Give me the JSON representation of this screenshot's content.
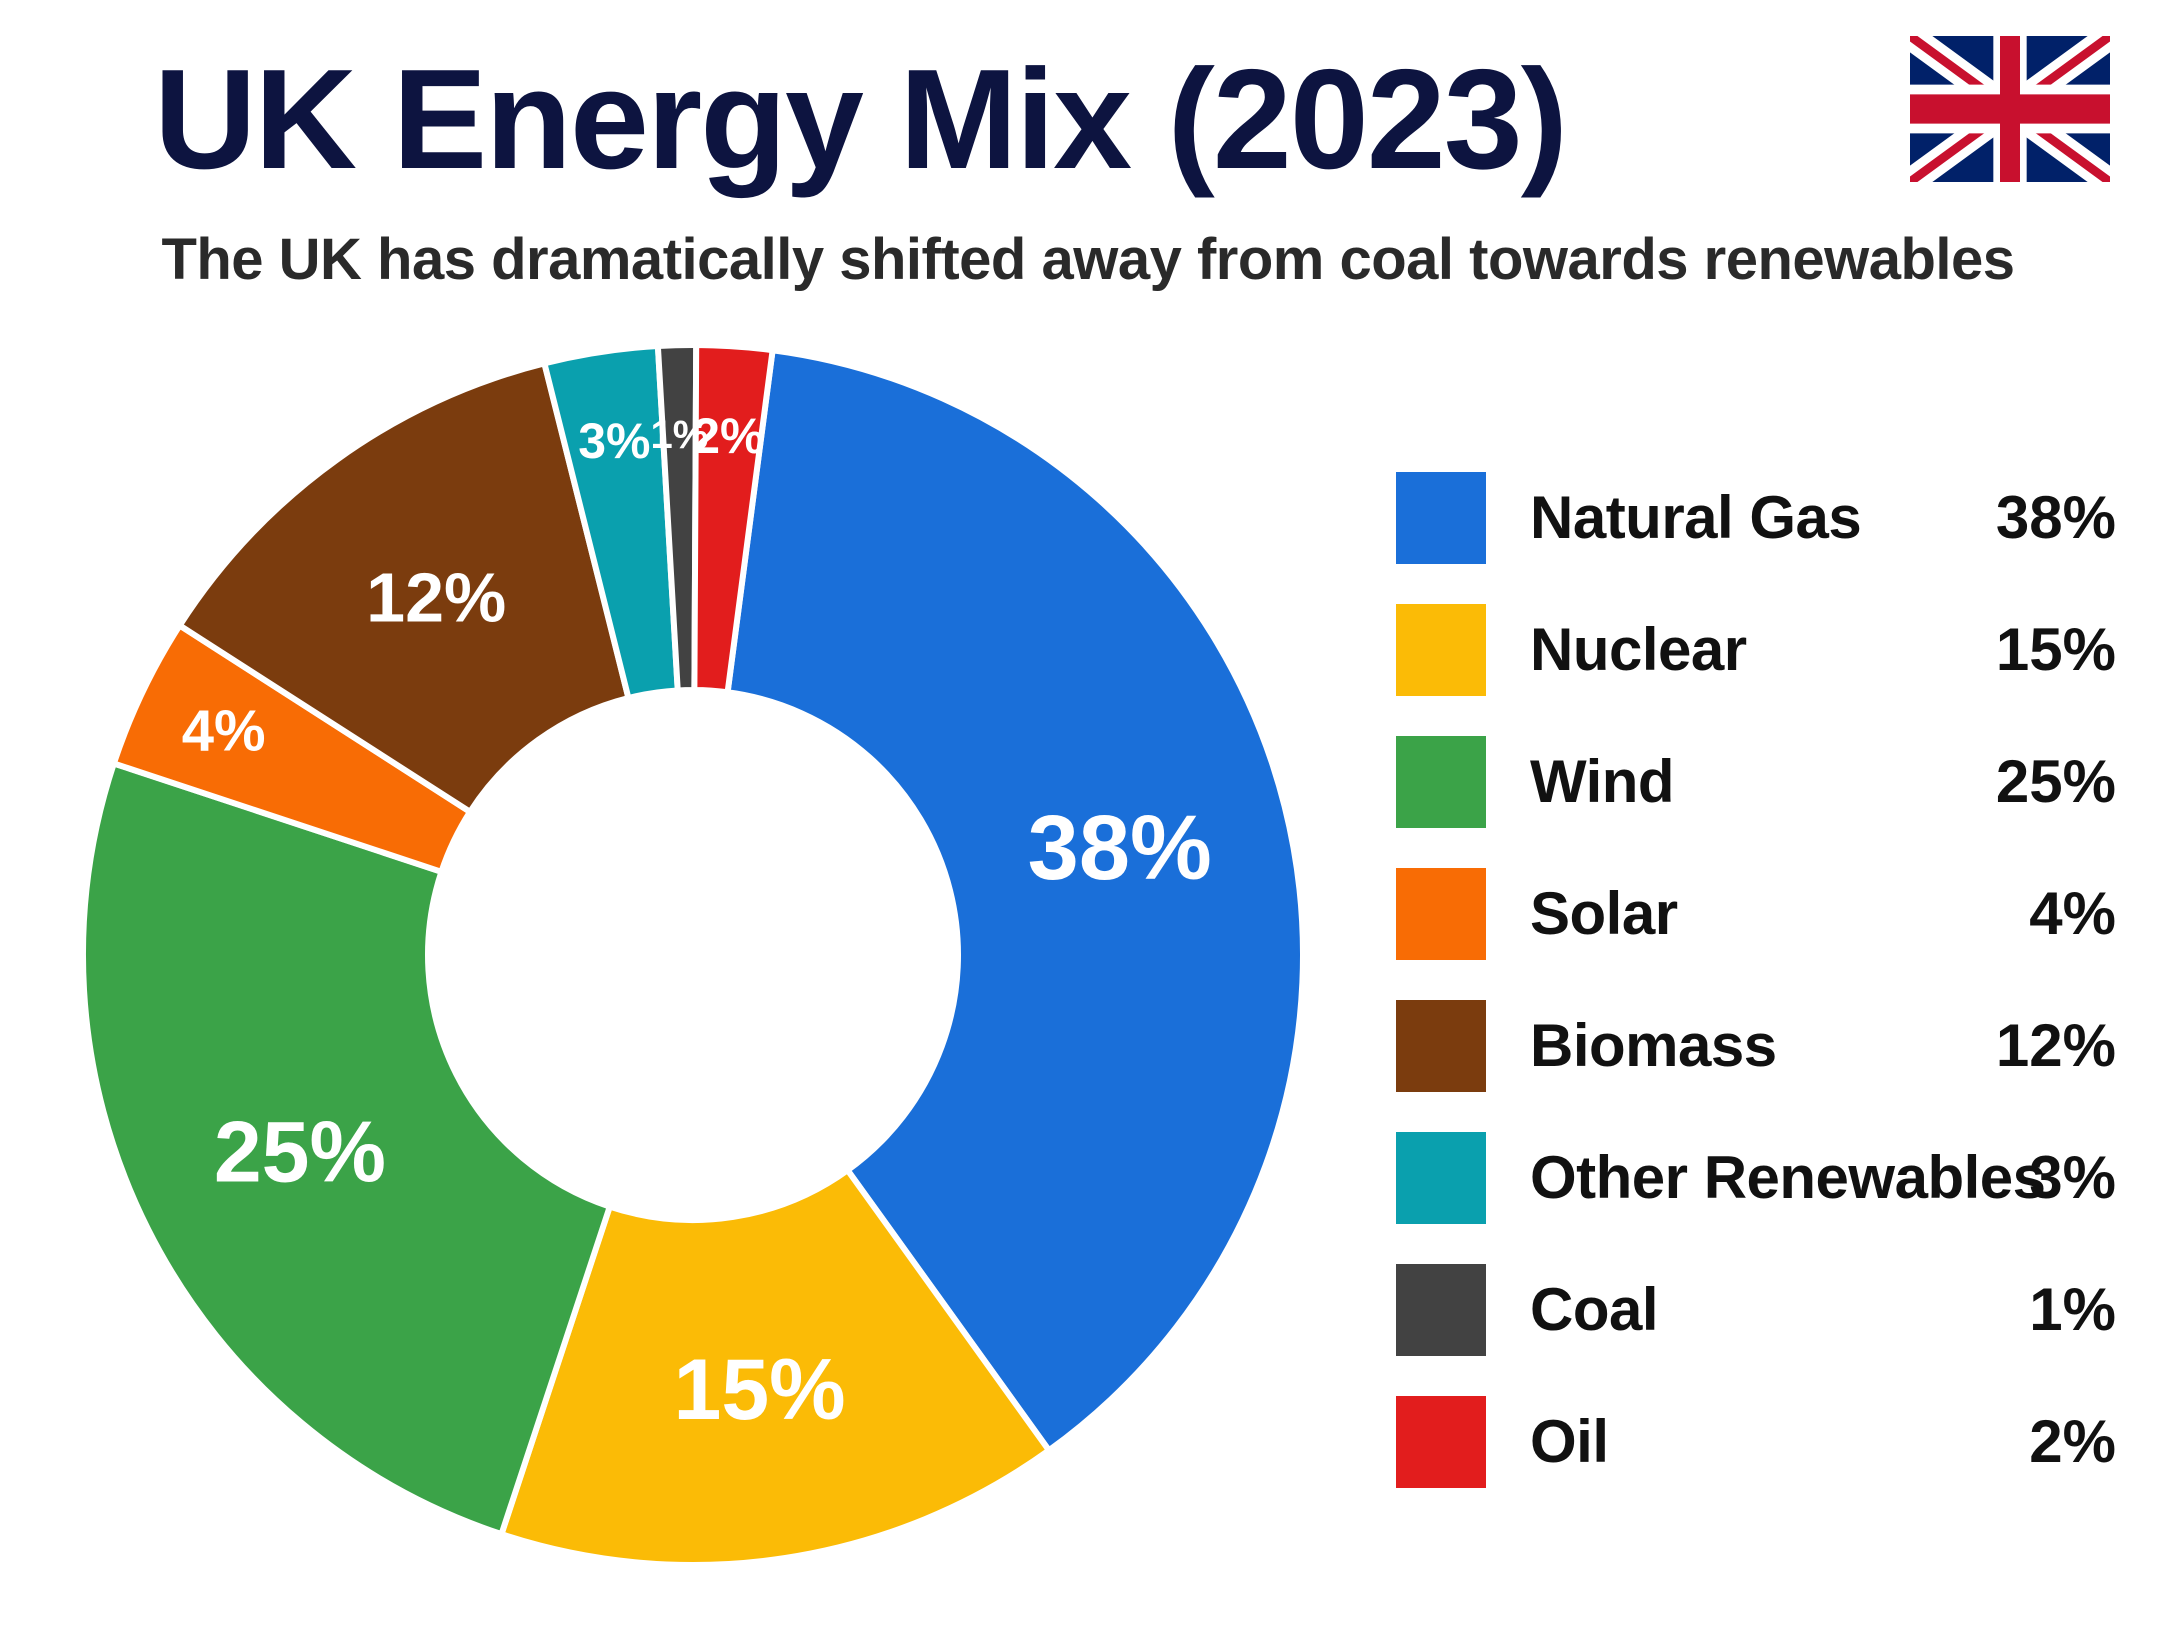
{
  "title": "UK Energy Mix (2023)",
  "subtitle": "The UK has dramatically shifted away from coal towards renewables",
  "flag_icon": "uk-flag-icon",
  "chart_data": {
    "type": "pie",
    "variant": "donut",
    "title": "UK Energy Mix (2023)",
    "subtitle": "The UK has dramatically shifted away from coal towards renewables",
    "unit": "%",
    "legend_position": "right",
    "series": [
      {
        "name": "Natural Gas",
        "value": 38,
        "label": "38%",
        "color": "#1a6fd9"
      },
      {
        "name": "Nuclear",
        "value": 15,
        "label": "15%",
        "color": "#fbbb06"
      },
      {
        "name": "Wind",
        "value": 25,
        "label": "25%",
        "color": "#3ba348"
      },
      {
        "name": "Solar",
        "value": 4,
        "label": "4%",
        "color": "#f86c05"
      },
      {
        "name": "Biomass",
        "value": 12,
        "label": "12%",
        "color": "#7b3c0e"
      },
      {
        "name": "Other Renewables",
        "value": 3,
        "label": "3%",
        "color": "#0aa0ae"
      },
      {
        "name": "Coal",
        "value": 1,
        "label": "1%",
        "color": "#424242"
      },
      {
        "name": "Oil",
        "value": 2,
        "label": "2%",
        "color": "#e21d1d"
      }
    ]
  }
}
